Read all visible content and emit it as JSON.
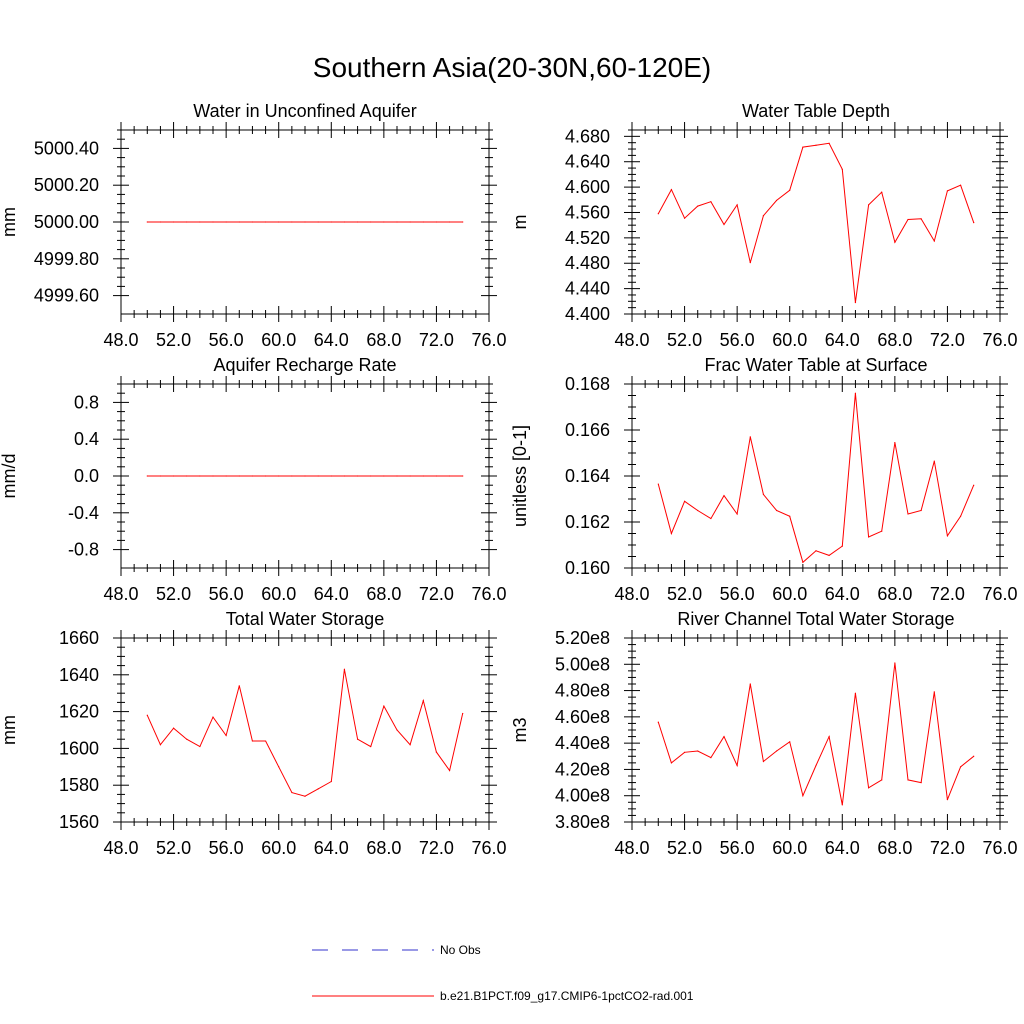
{
  "title": "Southern Asia(20-30N,60-120E)",
  "chart_data": [
    {
      "type": "line",
      "title": "Water in Unconfined Aquifer",
      "ylabel": "mm",
      "xlim": [
        48.0,
        76.0
      ],
      "ylim": [
        4999.5,
        5000.5
      ],
      "xticks": [
        48,
        52,
        56,
        60,
        64,
        68,
        72,
        76
      ],
      "xtick_labels": [
        "48.0",
        "52.0",
        "56.0",
        "60.0",
        "64.0",
        "68.0",
        "72.0",
        "76.0"
      ],
      "yticks": [
        4999.6,
        4999.8,
        5000.0,
        5000.2,
        5000.4
      ],
      "ytick_labels": [
        "4999.60",
        "4999.80",
        "5000.00",
        "5000.20",
        "5000.40"
      ],
      "x": [
        50,
        51,
        52,
        53,
        54,
        55,
        56,
        57,
        58,
        59,
        60,
        61,
        62,
        63,
        64,
        65,
        66,
        67,
        68,
        69,
        70,
        71,
        72,
        73,
        74
      ],
      "series": [
        {
          "name": "b.e21.B1PCT.f09_g17.CMIP6-1pctCO2-rad.001",
          "color": "#ff0000",
          "values": [
            5000,
            5000,
            5000,
            5000,
            5000,
            5000,
            5000,
            5000,
            5000,
            5000,
            5000,
            5000,
            5000,
            5000,
            5000,
            5000,
            5000,
            5000,
            5000,
            5000,
            5000,
            5000,
            5000,
            5000,
            5000
          ]
        }
      ]
    },
    {
      "type": "line",
      "title": "Water Table Depth",
      "ylabel": "m",
      "xlim": [
        48.0,
        76.0
      ],
      "ylim": [
        4.4,
        4.69
      ],
      "xticks": [
        48,
        52,
        56,
        60,
        64,
        68,
        72,
        76
      ],
      "xtick_labels": [
        "48.0",
        "52.0",
        "56.0",
        "60.0",
        "64.0",
        "68.0",
        "72.0",
        "76.0"
      ],
      "yticks": [
        4.4,
        4.44,
        4.48,
        4.52,
        4.56,
        4.6,
        4.64,
        4.68
      ],
      "ytick_labels": [
        "4.400",
        "4.440",
        "4.480",
        "4.520",
        "4.560",
        "4.600",
        "4.640",
        "4.680"
      ],
      "x": [
        50,
        51,
        52,
        53,
        54,
        55,
        56,
        57,
        58,
        59,
        60,
        61,
        62,
        63,
        64,
        65,
        66,
        67,
        68,
        69,
        70,
        71,
        72,
        73,
        74
      ],
      "series": [
        {
          "name": "b.e21.B1PCT.f09_g17.CMIP6-1pctCO2-rad.001",
          "color": "#ff0000",
          "values": [
            4.558,
            4.596,
            4.551,
            4.57,
            4.577,
            4.541,
            4.572,
            4.481,
            4.555,
            4.579,
            4.595,
            4.663,
            4.666,
            4.669,
            4.628,
            4.418,
            4.572,
            4.592,
            4.513,
            4.549,
            4.55,
            4.515,
            4.594,
            4.603,
            4.544
          ]
        }
      ]
    },
    {
      "type": "line",
      "title": "Aquifer Recharge Rate",
      "ylabel": "mm/d",
      "xlim": [
        48.0,
        76.0
      ],
      "ylim": [
        -1.0,
        1.0
      ],
      "xticks": [
        48,
        52,
        56,
        60,
        64,
        68,
        72,
        76
      ],
      "xtick_labels": [
        "48.0",
        "52.0",
        "56.0",
        "60.0",
        "64.0",
        "68.0",
        "72.0",
        "76.0"
      ],
      "yticks": [
        -0.8,
        -0.4,
        0.0,
        0.4,
        0.8
      ],
      "ytick_labels": [
        "-0.8",
        "-0.4",
        "0.0",
        "0.4",
        "0.8"
      ],
      "x": [
        50,
        51,
        52,
        53,
        54,
        55,
        56,
        57,
        58,
        59,
        60,
        61,
        62,
        63,
        64,
        65,
        66,
        67,
        68,
        69,
        70,
        71,
        72,
        73,
        74
      ],
      "series": [
        {
          "name": "b.e21.B1PCT.f09_g17.CMIP6-1pctCO2-rad.001",
          "color": "#ff0000",
          "values": [
            0,
            0,
            0,
            0,
            0,
            0,
            0,
            0,
            0,
            0,
            0,
            0,
            0,
            0,
            0,
            0,
            0,
            0,
            0,
            0,
            0,
            0,
            0,
            0,
            0
          ]
        }
      ]
    },
    {
      "type": "line",
      "title": "Frac Water Table at Surface",
      "ylabel": "unitless [0-1]",
      "xlim": [
        48.0,
        76.0
      ],
      "ylim": [
        0.16,
        0.168
      ],
      "xticks": [
        48,
        52,
        56,
        60,
        64,
        68,
        72,
        76
      ],
      "xtick_labels": [
        "48.0",
        "52.0",
        "56.0",
        "60.0",
        "64.0",
        "68.0",
        "72.0",
        "76.0"
      ],
      "yticks": [
        0.16,
        0.162,
        0.164,
        0.166,
        0.168
      ],
      "ytick_labels": [
        "0.160",
        "0.162",
        "0.164",
        "0.166",
        "0.168"
      ],
      "x": [
        50,
        51,
        52,
        53,
        54,
        55,
        56,
        57,
        58,
        59,
        60,
        61,
        62,
        63,
        64,
        65,
        66,
        67,
        68,
        69,
        70,
        71,
        72,
        73,
        74
      ],
      "series": [
        {
          "name": "b.e21.B1PCT.f09_g17.CMIP6-1pctCO2-rad.001",
          "color": "#ff0000",
          "values": [
            0.16365,
            0.1615,
            0.1629,
            0.1625,
            0.16215,
            0.16315,
            0.16235,
            0.1657,
            0.1632,
            0.1625,
            0.16225,
            0.16025,
            0.16075,
            0.16055,
            0.16095,
            0.1676,
            0.16135,
            0.1616,
            0.16545,
            0.16235,
            0.1625,
            0.16465,
            0.1614,
            0.16225,
            0.1636
          ]
        }
      ]
    },
    {
      "type": "line",
      "title": "Total Water Storage",
      "ylabel": "mm",
      "xlim": [
        48.0,
        76.0
      ],
      "ylim": [
        1560,
        1660
      ],
      "xticks": [
        48,
        52,
        56,
        60,
        64,
        68,
        72,
        76
      ],
      "xtick_labels": [
        "48.0",
        "52.0",
        "56.0",
        "60.0",
        "64.0",
        "68.0",
        "72.0",
        "76.0"
      ],
      "yticks": [
        1560,
        1580,
        1600,
        1620,
        1640,
        1660
      ],
      "ytick_labels": [
        "1560",
        "1580",
        "1600",
        "1620",
        "1640",
        "1660"
      ],
      "x": [
        50,
        51,
        52,
        53,
        54,
        55,
        56,
        57,
        58,
        59,
        60,
        61,
        62,
        63,
        64,
        65,
        66,
        67,
        68,
        69,
        70,
        71,
        72,
        73,
        74
      ],
      "series": [
        {
          "name": "b.e21.B1PCT.f09_g17.CMIP6-1pctCO2-rad.001",
          "color": "#ff0000",
          "values": [
            1618,
            1602,
            1611,
            1605,
            1601,
            1617,
            1607,
            1634,
            1604,
            1604,
            1590,
            1576,
            1574,
            1578,
            1582,
            1643,
            1605,
            1601,
            1623,
            1610,
            1602,
            1626,
            1598,
            1588,
            1619
          ]
        }
      ]
    },
    {
      "type": "line",
      "title": "River Channel Total Water Storage",
      "ylabel": "m3",
      "xlim": [
        48.0,
        76.0
      ],
      "ylim": [
        380000000,
        520000000
      ],
      "xticks": [
        48,
        52,
        56,
        60,
        64,
        68,
        72,
        76
      ],
      "xtick_labels": [
        "48.0",
        "52.0",
        "56.0",
        "60.0",
        "64.0",
        "68.0",
        "72.0",
        "76.0"
      ],
      "yticks": [
        380000000,
        400000000,
        420000000,
        440000000,
        460000000,
        480000000,
        500000000,
        520000000
      ],
      "ytick_labels": [
        "3.80e8",
        "4.00e8",
        "4.20e8",
        "4.40e8",
        "4.60e8",
        "4.80e8",
        "5.00e8",
        "5.20e8"
      ],
      "x": [
        50,
        51,
        52,
        53,
        54,
        55,
        56,
        57,
        58,
        59,
        60,
        61,
        62,
        63,
        64,
        65,
        66,
        67,
        68,
        69,
        70,
        71,
        72,
        73,
        74
      ],
      "series": [
        {
          "name": "b.e21.B1PCT.f09_g17.CMIP6-1pctCO2-rad.001",
          "color": "#ff0000",
          "values": [
            456000000,
            425000000,
            433000000,
            434000000,
            429000000,
            445000000,
            423000000,
            485000000,
            426000000,
            434000000,
            441000000,
            400000000,
            423000000,
            445000000,
            393000000,
            478000000,
            406000000,
            412000000,
            501000000,
            412000000,
            410000000,
            479000000,
            397000000,
            422000000,
            430000000
          ]
        }
      ]
    }
  ],
  "legend": {
    "items": [
      {
        "label": "No Obs",
        "color": "#3333cc",
        "dash": true
      },
      {
        "label": "b.e21.B1PCT.f09_g17.CMIP6-1pctCO2-rad.001",
        "color": "#ff0000",
        "dash": false
      }
    ]
  }
}
